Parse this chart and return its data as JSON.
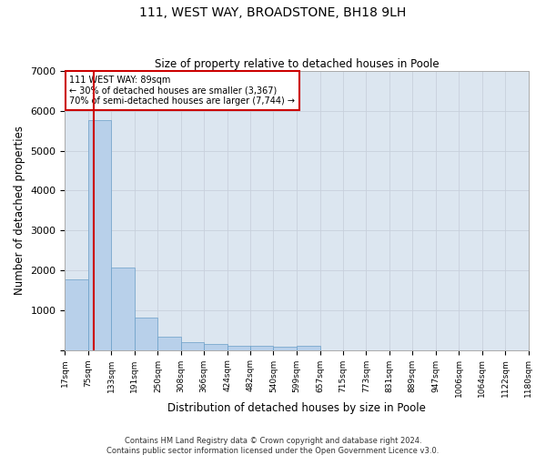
{
  "title": "111, WEST WAY, BROADSTONE, BH18 9LH",
  "subtitle": "Size of property relative to detached houses in Poole",
  "xlabel": "Distribution of detached houses by size in Poole",
  "ylabel": "Number of detached properties",
  "footnote1": "Contains HM Land Registry data © Crown copyright and database right 2024.",
  "footnote2": "Contains public sector information licensed under the Open Government Licence v3.0.",
  "property_size": 89,
  "annotation_line1": "111 WEST WAY: 89sqm",
  "annotation_line2": "← 30% of detached houses are smaller (3,367)",
  "annotation_line3": "70% of semi-detached houses are larger (7,744) →",
  "bar_edges": [
    17,
    75,
    133,
    191,
    250,
    308,
    366,
    424,
    482,
    540,
    599,
    657,
    715,
    773,
    831,
    889,
    947,
    1006,
    1064,
    1122,
    1180
  ],
  "bar_heights": [
    1780,
    5780,
    2060,
    820,
    340,
    185,
    155,
    105,
    100,
    80,
    100,
    0,
    0,
    0,
    0,
    0,
    0,
    0,
    0,
    0
  ],
  "bar_color": "#b8d0ea",
  "bar_edge_color": "#6a9fc8",
  "property_line_color": "#cc0000",
  "annotation_box_edge_color": "#cc0000",
  "ylim": [
    0,
    7000
  ],
  "grid_color": "#c8d0dc",
  "background_color": "#dce6f0"
}
